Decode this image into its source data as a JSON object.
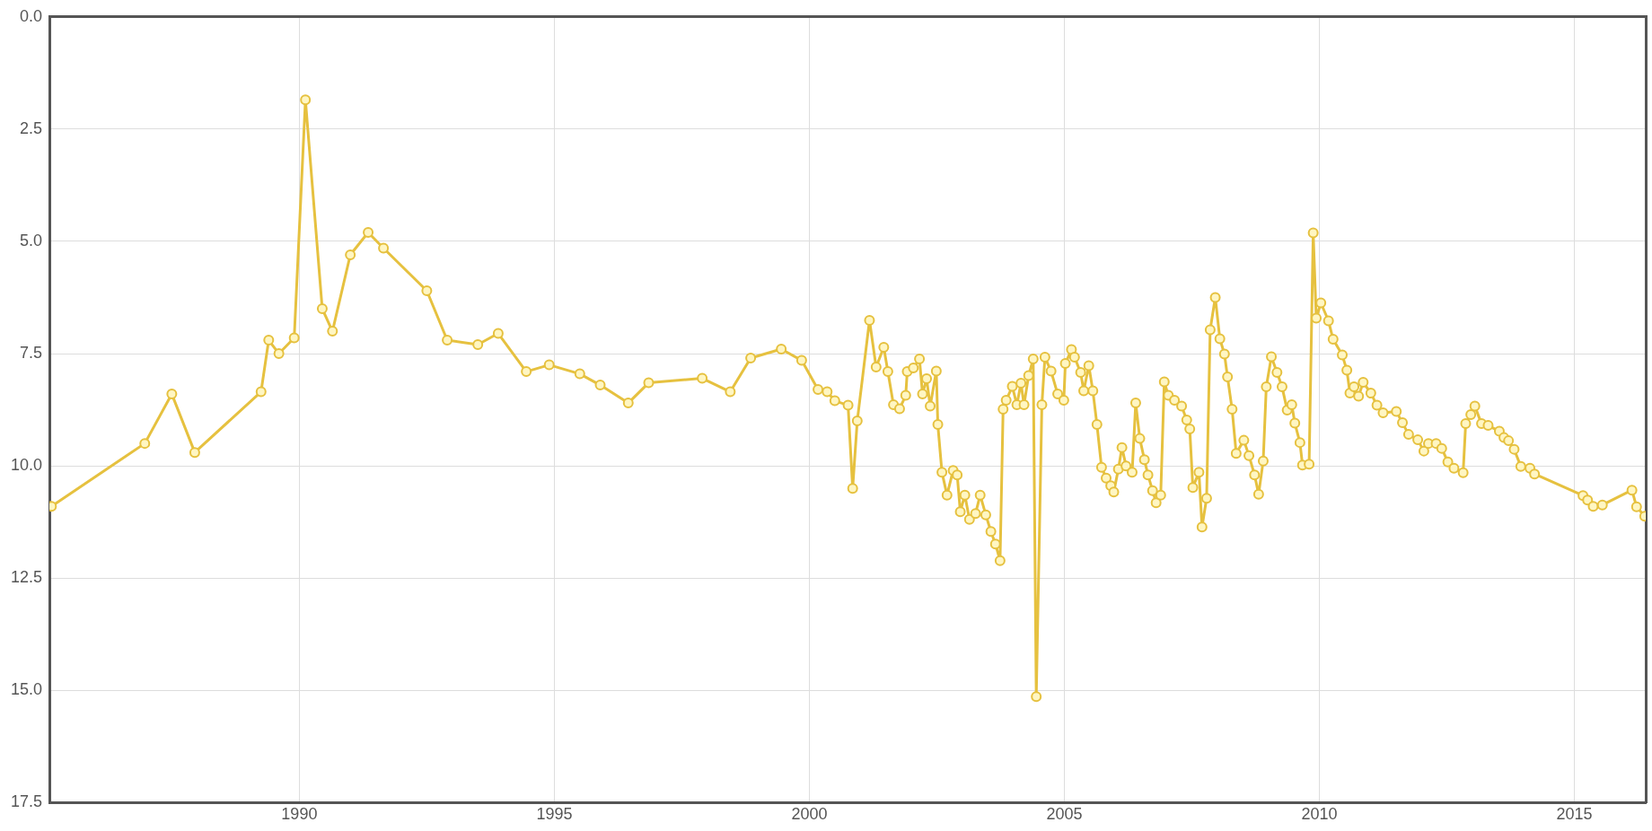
{
  "chart_data": {
    "type": "line",
    "color": "#e6c13f",
    "marker": "circle",
    "grid": true,
    "xlim": [
      1985.1,
      2016.4
    ],
    "ylim": [
      17.5,
      0
    ],
    "xticks": [
      1990,
      1995,
      2000,
      2005,
      2010,
      2015
    ],
    "yticks": [
      {
        "value": 0,
        "label": "0.0"
      },
      {
        "value": 2.5,
        "label": "2.5"
      },
      {
        "value": 5,
        "label": "5.0"
      },
      {
        "value": 7.5,
        "label": "7.5"
      },
      {
        "value": 10,
        "label": "10.0"
      },
      {
        "value": 12.5,
        "label": "12.5"
      },
      {
        "value": 15,
        "label": "15.0"
      },
      {
        "value": 17.5,
        "label": "17.5"
      }
    ],
    "x": [
      1985.14,
      1986.97,
      1987.5,
      1987.95,
      1989.25,
      1989.4,
      1989.6,
      1989.9,
      1990.12,
      1990.45,
      1990.65,
      1991.0,
      1991.35,
      1991.65,
      1992.5,
      1992.9,
      1993.5,
      1993.9,
      1994.45,
      1994.9,
      1995.5,
      1995.9,
      1996.45,
      1996.85,
      1997.9,
      1998.45,
      1998.85,
      1999.45,
      1999.85,
      2000.17,
      2000.35,
      2000.5,
      2000.76,
      2000.85,
      2000.94,
      2001.18,
      2001.31,
      2001.46,
      2001.54,
      2001.65,
      2001.77,
      2001.89,
      2001.92,
      2002.04,
      2002.16,
      2002.22,
      2002.3,
      2002.37,
      2002.49,
      2002.52,
      2002.6,
      2002.7,
      2002.82,
      2002.9,
      2002.96,
      2003.05,
      2003.14,
      2003.26,
      2003.35,
      2003.46,
      2003.56,
      2003.65,
      2003.74,
      2003.8,
      2003.86,
      2003.98,
      2004.07,
      2004.15,
      2004.21,
      2004.3,
      2004.39,
      2004.45,
      2004.56,
      2004.62,
      2004.74,
      2004.87,
      2004.99,
      2005.02,
      2005.14,
      2005.2,
      2005.32,
      2005.38,
      2005.48,
      2005.56,
      2005.64,
      2005.73,
      2005.82,
      2005.91,
      2005.97,
      2006.06,
      2006.13,
      2006.21,
      2006.33,
      2006.4,
      2006.48,
      2006.57,
      2006.64,
      2006.73,
      2006.8,
      2006.89,
      2006.96,
      2007.04,
      2007.16,
      2007.3,
      2007.4,
      2007.46,
      2007.52,
      2007.64,
      2007.7,
      2007.79,
      2007.86,
      2007.96,
      2008.05,
      2008.14,
      2008.2,
      2008.29,
      2008.37,
      2008.52,
      2008.62,
      2008.73,
      2008.81,
      2008.9,
      2008.96,
      2009.06,
      2009.17,
      2009.27,
      2009.37,
      2009.46,
      2009.52,
      2009.62,
      2009.67,
      2009.8,
      2009.88,
      2009.94,
      2010.03,
      2010.18,
      2010.27,
      2010.45,
      2010.54,
      2010.6,
      2010.68,
      2010.77,
      2010.86,
      2011.01,
      2011.13,
      2011.25,
      2011.51,
      2011.63,
      2011.75,
      2011.93,
      2012.05,
      2012.14,
      2012.29,
      2012.4,
      2012.52,
      2012.64,
      2012.82,
      2012.87,
      2012.97,
      2013.05,
      2013.18,
      2013.31,
      2013.53,
      2013.62,
      2013.71,
      2013.82,
      2013.95,
      2014.13,
      2014.22,
      2015.17,
      2015.26,
      2015.37,
      2015.55,
      2016.13,
      2016.22,
      2016.38
    ],
    "values": [
      10.9,
      9.5,
      8.4,
      9.7,
      8.35,
      7.2,
      7.5,
      7.15,
      1.85,
      6.5,
      7.0,
      5.3,
      4.8,
      5.15,
      6.1,
      7.2,
      7.3,
      7.05,
      7.9,
      7.75,
      7.95,
      8.2,
      8.6,
      8.15,
      8.05,
      8.35,
      7.6,
      7.4,
      7.65,
      8.3,
      8.35,
      8.55,
      8.65,
      10.5,
      9.0,
      6.76,
      7.8,
      7.36,
      7.9,
      8.64,
      8.73,
      8.43,
      7.9,
      7.82,
      7.62,
      8.4,
      8.06,
      8.67,
      7.89,
      9.08,
      10.14,
      10.65,
      10.1,
      10.2,
      11.02,
      10.65,
      11.19,
      11.06,
      10.65,
      11.09,
      11.46,
      11.74,
      12.11,
      8.74,
      8.54,
      8.23,
      8.64,
      8.16,
      8.64,
      7.99,
      7.62,
      15.14,
      8.64,
      7.58,
      7.89,
      8.4,
      8.54,
      7.72,
      7.41,
      7.58,
      7.92,
      8.33,
      7.77,
      8.33,
      9.08,
      10.03,
      10.27,
      10.44,
      10.58,
      10.07,
      9.59,
      10.0,
      10.14,
      8.6,
      9.39,
      9.86,
      10.2,
      10.55,
      10.82,
      10.65,
      8.13,
      8.43,
      8.54,
      8.67,
      8.98,
      9.18,
      10.48,
      10.14,
      11.36,
      10.72,
      6.97,
      6.25,
      7.17,
      7.51,
      8.02,
      8.74,
      9.72,
      9.43,
      9.77,
      10.2,
      10.63,
      9.89,
      8.24,
      7.57,
      7.92,
      8.24,
      8.76,
      8.64,
      9.05,
      9.48,
      9.98,
      9.96,
      4.81,
      6.71,
      6.37,
      6.77,
      7.18,
      7.53,
      7.87,
      8.38,
      8.24,
      8.45,
      8.14,
      8.38,
      8.65,
      8.82,
      8.79,
      9.04,
      9.3,
      9.42,
      9.67,
      9.5,
      9.5,
      9.61,
      9.91,
      10.05,
      10.15,
      9.06,
      8.86,
      8.67,
      9.06,
      9.1,
      9.23,
      9.37,
      9.44,
      9.63,
      10.01,
      10.05,
      10.18,
      10.66,
      10.76,
      10.9,
      10.87,
      10.54,
      10.91,
      11.12
    ]
  }
}
